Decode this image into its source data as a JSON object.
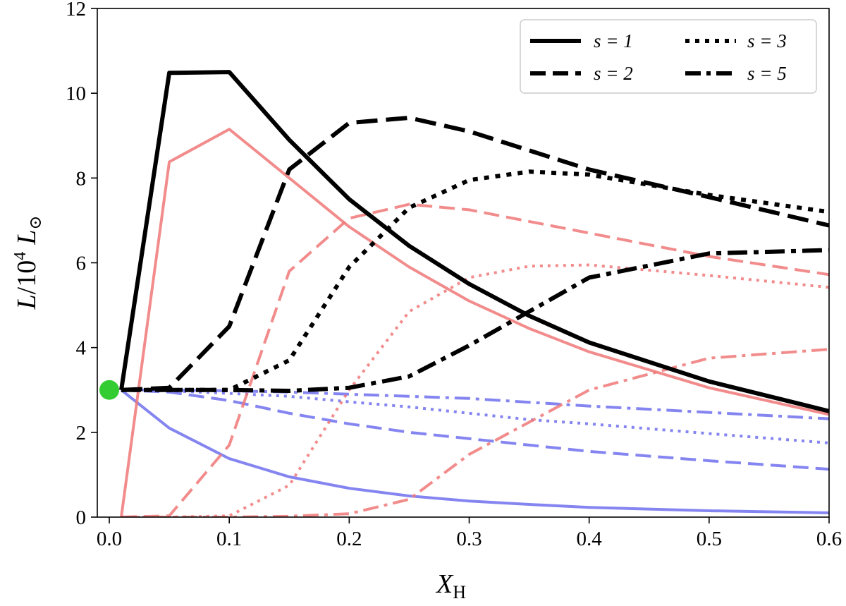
{
  "chart_data": {
    "type": "line",
    "title": "",
    "xlabel": "X_H",
    "ylabel": "L/10^4 L_⊙",
    "xlabel_main": "X",
    "xlabel_sub": "H",
    "ylabel_prefix": "L",
    "ylabel_slash": "/10",
    "ylabel_exp": "4",
    "ylabel_suffix": "L",
    "ylabel_sub": "⊙",
    "xlim": [
      -0.01,
      0.6
    ],
    "ylim": [
      0,
      12
    ],
    "x_ticks": [
      0.0,
      0.1,
      0.2,
      0.3,
      0.4,
      0.5,
      0.6
    ],
    "x_tick_labels": [
      "0.0",
      "0.1",
      "0.2",
      "0.3",
      "0.4",
      "0.5",
      "0.6"
    ],
    "y_ticks": [
      0,
      2,
      4,
      6,
      8,
      10,
      12
    ],
    "y_tick_labels": [
      "0",
      "2",
      "4",
      "6",
      "8",
      "10",
      "12"
    ],
    "grid": false,
    "legend_position": "top-right",
    "legend": [
      {
        "label": "s = 1",
        "style": "solid"
      },
      {
        "label": "s = 3",
        "style": "dotted"
      },
      {
        "label": "s = 2",
        "style": "dashed"
      },
      {
        "label": "s = 5",
        "style": "dashdot"
      }
    ],
    "colors": {
      "total": "#000000",
      "red": "#f07878",
      "blue": "#7070ee",
      "marker": "#33cc33"
    },
    "marker_point": {
      "x": 0.0,
      "y": 3.0
    },
    "series": [
      {
        "name": "s=1 total",
        "group": "total",
        "style": "solid",
        "x": [
          0.01,
          0.05,
          0.1,
          0.15,
          0.2,
          0.25,
          0.3,
          0.35,
          0.4,
          0.5,
          0.6
        ],
        "y": [
          3.0,
          10.48,
          10.5,
          8.9,
          7.5,
          6.4,
          5.5,
          4.75,
          4.12,
          3.2,
          2.5
        ]
      },
      {
        "name": "s=2 total",
        "group": "total",
        "style": "dashed",
        "x": [
          0.01,
          0.05,
          0.1,
          0.15,
          0.2,
          0.25,
          0.3,
          0.4,
          0.5,
          0.6
        ],
        "y": [
          3.0,
          3.05,
          4.5,
          8.2,
          9.3,
          9.42,
          9.1,
          8.2,
          7.55,
          6.88
        ]
      },
      {
        "name": "s=3 total",
        "group": "total",
        "style": "dotted",
        "x": [
          0.01,
          0.05,
          0.1,
          0.15,
          0.2,
          0.25,
          0.3,
          0.35,
          0.4,
          0.5,
          0.6
        ],
        "y": [
          3.0,
          3.0,
          3.0,
          3.7,
          5.9,
          7.3,
          7.95,
          8.15,
          8.08,
          7.6,
          7.2
        ]
      },
      {
        "name": "s=5 total",
        "group": "total",
        "style": "dashdot",
        "x": [
          0.01,
          0.05,
          0.1,
          0.15,
          0.2,
          0.25,
          0.3,
          0.4,
          0.5,
          0.6
        ],
        "y": [
          3.0,
          3.0,
          3.0,
          2.98,
          3.05,
          3.32,
          4.05,
          5.65,
          6.22,
          6.3
        ]
      },
      {
        "name": "s=1 red",
        "group": "red",
        "style": "solid",
        "x": [
          0.01,
          0.05,
          0.1,
          0.15,
          0.2,
          0.25,
          0.3,
          0.35,
          0.4,
          0.5,
          0.6
        ],
        "y": [
          0.0,
          8.38,
          9.15,
          8.0,
          6.85,
          5.9,
          5.1,
          4.45,
          3.9,
          3.05,
          2.42
        ]
      },
      {
        "name": "s=2 red",
        "group": "red",
        "style": "dashed",
        "x": [
          0.01,
          0.05,
          0.1,
          0.15,
          0.2,
          0.25,
          0.3,
          0.4,
          0.5,
          0.6
        ],
        "y": [
          0.0,
          0.03,
          1.7,
          5.8,
          7.05,
          7.38,
          7.25,
          6.7,
          6.15,
          5.72
        ]
      },
      {
        "name": "s=3 red",
        "group": "red",
        "style": "dotted",
        "x": [
          0.01,
          0.05,
          0.1,
          0.15,
          0.2,
          0.25,
          0.3,
          0.35,
          0.4,
          0.5,
          0.6
        ],
        "y": [
          0.0,
          0.0,
          0.03,
          0.75,
          3.0,
          4.85,
          5.65,
          5.92,
          5.95,
          5.7,
          5.42
        ]
      },
      {
        "name": "s=5 red",
        "group": "red",
        "style": "dashdot",
        "x": [
          0.01,
          0.05,
          0.1,
          0.15,
          0.2,
          0.25,
          0.3,
          0.4,
          0.5,
          0.6
        ],
        "y": [
          0.0,
          0.0,
          0.0,
          0.02,
          0.08,
          0.42,
          1.48,
          3.0,
          3.75,
          3.96
        ]
      },
      {
        "name": "s=1 blue",
        "group": "blue",
        "style": "solid",
        "x": [
          0.01,
          0.05,
          0.1,
          0.15,
          0.2,
          0.25,
          0.3,
          0.35,
          0.4,
          0.5,
          0.6
        ],
        "y": [
          3.0,
          2.1,
          1.38,
          0.95,
          0.68,
          0.5,
          0.38,
          0.3,
          0.23,
          0.15,
          0.1
        ]
      },
      {
        "name": "s=2 blue",
        "group": "blue",
        "style": "dashed",
        "x": [
          0.01,
          0.05,
          0.1,
          0.15,
          0.2,
          0.25,
          0.3,
          0.4,
          0.5,
          0.6
        ],
        "y": [
          3.0,
          2.95,
          2.75,
          2.45,
          2.2,
          2.0,
          1.85,
          1.55,
          1.33,
          1.13
        ]
      },
      {
        "name": "s=3 blue",
        "group": "blue",
        "style": "dotted",
        "x": [
          0.01,
          0.05,
          0.1,
          0.15,
          0.2,
          0.25,
          0.3,
          0.35,
          0.4,
          0.5,
          0.6
        ],
        "y": [
          3.0,
          2.98,
          2.92,
          2.85,
          2.72,
          2.6,
          2.45,
          2.3,
          2.2,
          1.97,
          1.75
        ]
      },
      {
        "name": "s=5 blue",
        "group": "blue",
        "style": "dashdot",
        "x": [
          0.01,
          0.05,
          0.1,
          0.15,
          0.2,
          0.25,
          0.3,
          0.4,
          0.5,
          0.6
        ],
        "y": [
          3.0,
          3.0,
          2.98,
          2.95,
          2.9,
          2.85,
          2.8,
          2.62,
          2.47,
          2.32
        ]
      }
    ]
  }
}
